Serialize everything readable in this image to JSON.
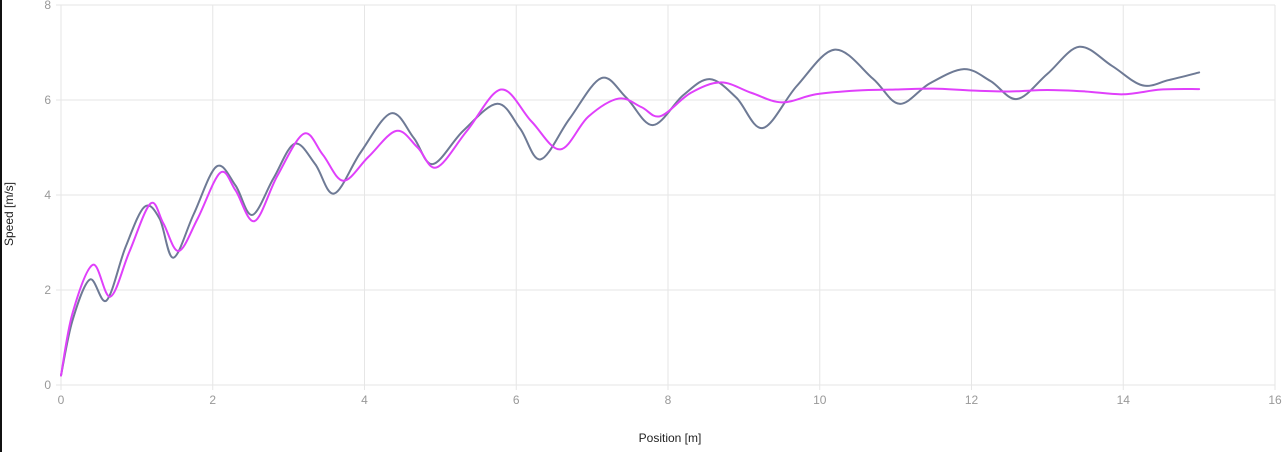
{
  "chart_data": {
    "type": "line",
    "title": "",
    "xlabel": "Position [m]",
    "ylabel": "Speed [m/s]",
    "xlim": [
      0,
      16
    ],
    "ylim": [
      0,
      8
    ],
    "xticks": [
      0,
      2,
      4,
      6,
      8,
      10,
      12,
      14,
      16
    ],
    "yticks": [
      0,
      2,
      4,
      6,
      8
    ],
    "grid": true,
    "legend": "none",
    "colors": {
      "grid": "#e6e6e6",
      "tick_text": "#999999",
      "axis_text": "#222222"
    },
    "series": [
      {
        "color": "#6e7a95",
        "points": [
          [
            0.0,
            0.2
          ],
          [
            0.15,
            1.35
          ],
          [
            0.38,
            2.22
          ],
          [
            0.6,
            1.78
          ],
          [
            0.85,
            2.9
          ],
          [
            1.1,
            3.75
          ],
          [
            1.3,
            3.5
          ],
          [
            1.48,
            2.68
          ],
          [
            1.75,
            3.6
          ],
          [
            2.05,
            4.6
          ],
          [
            2.3,
            4.2
          ],
          [
            2.52,
            3.58
          ],
          [
            2.8,
            4.35
          ],
          [
            3.08,
            5.08
          ],
          [
            3.35,
            4.65
          ],
          [
            3.6,
            4.03
          ],
          [
            3.95,
            4.9
          ],
          [
            4.35,
            5.72
          ],
          [
            4.65,
            5.2
          ],
          [
            4.9,
            4.65
          ],
          [
            5.3,
            5.35
          ],
          [
            5.75,
            5.92
          ],
          [
            6.05,
            5.4
          ],
          [
            6.32,
            4.75
          ],
          [
            6.7,
            5.6
          ],
          [
            7.12,
            6.46
          ],
          [
            7.45,
            6.05
          ],
          [
            7.8,
            5.47
          ],
          [
            8.2,
            6.1
          ],
          [
            8.55,
            6.44
          ],
          [
            8.9,
            6.05
          ],
          [
            9.25,
            5.41
          ],
          [
            9.7,
            6.3
          ],
          [
            10.2,
            7.06
          ],
          [
            10.7,
            6.45
          ],
          [
            11.05,
            5.92
          ],
          [
            11.45,
            6.35
          ],
          [
            11.9,
            6.65
          ],
          [
            12.25,
            6.4
          ],
          [
            12.6,
            6.02
          ],
          [
            13.0,
            6.55
          ],
          [
            13.42,
            7.12
          ],
          [
            13.85,
            6.72
          ],
          [
            14.25,
            6.31
          ],
          [
            14.6,
            6.42
          ],
          [
            15.0,
            6.58
          ]
        ]
      },
      {
        "color": "#e040fb",
        "points": [
          [
            0.0,
            0.2
          ],
          [
            0.15,
            1.5
          ],
          [
            0.42,
            2.53
          ],
          [
            0.65,
            1.86
          ],
          [
            0.9,
            2.8
          ],
          [
            1.18,
            3.82
          ],
          [
            1.35,
            3.4
          ],
          [
            1.55,
            2.82
          ],
          [
            1.8,
            3.5
          ],
          [
            2.1,
            4.47
          ],
          [
            2.3,
            4.1
          ],
          [
            2.55,
            3.45
          ],
          [
            2.85,
            4.4
          ],
          [
            3.2,
            5.29
          ],
          [
            3.45,
            4.85
          ],
          [
            3.72,
            4.3
          ],
          [
            4.05,
            4.8
          ],
          [
            4.42,
            5.35
          ],
          [
            4.7,
            5.0
          ],
          [
            4.95,
            4.58
          ],
          [
            5.35,
            5.35
          ],
          [
            5.8,
            6.22
          ],
          [
            6.2,
            5.55
          ],
          [
            6.58,
            4.96
          ],
          [
            6.95,
            5.65
          ],
          [
            7.35,
            6.03
          ],
          [
            7.65,
            5.85
          ],
          [
            7.9,
            5.66
          ],
          [
            8.3,
            6.15
          ],
          [
            8.7,
            6.37
          ],
          [
            9.1,
            6.15
          ],
          [
            9.5,
            5.95
          ],
          [
            9.95,
            6.12
          ],
          [
            10.5,
            6.2
          ],
          [
            11.0,
            6.22
          ],
          [
            11.5,
            6.24
          ],
          [
            12.0,
            6.2
          ],
          [
            12.5,
            6.18
          ],
          [
            13.0,
            6.21
          ],
          [
            13.5,
            6.18
          ],
          [
            14.0,
            6.12
          ],
          [
            14.5,
            6.22
          ],
          [
            15.0,
            6.23
          ]
        ]
      }
    ]
  }
}
